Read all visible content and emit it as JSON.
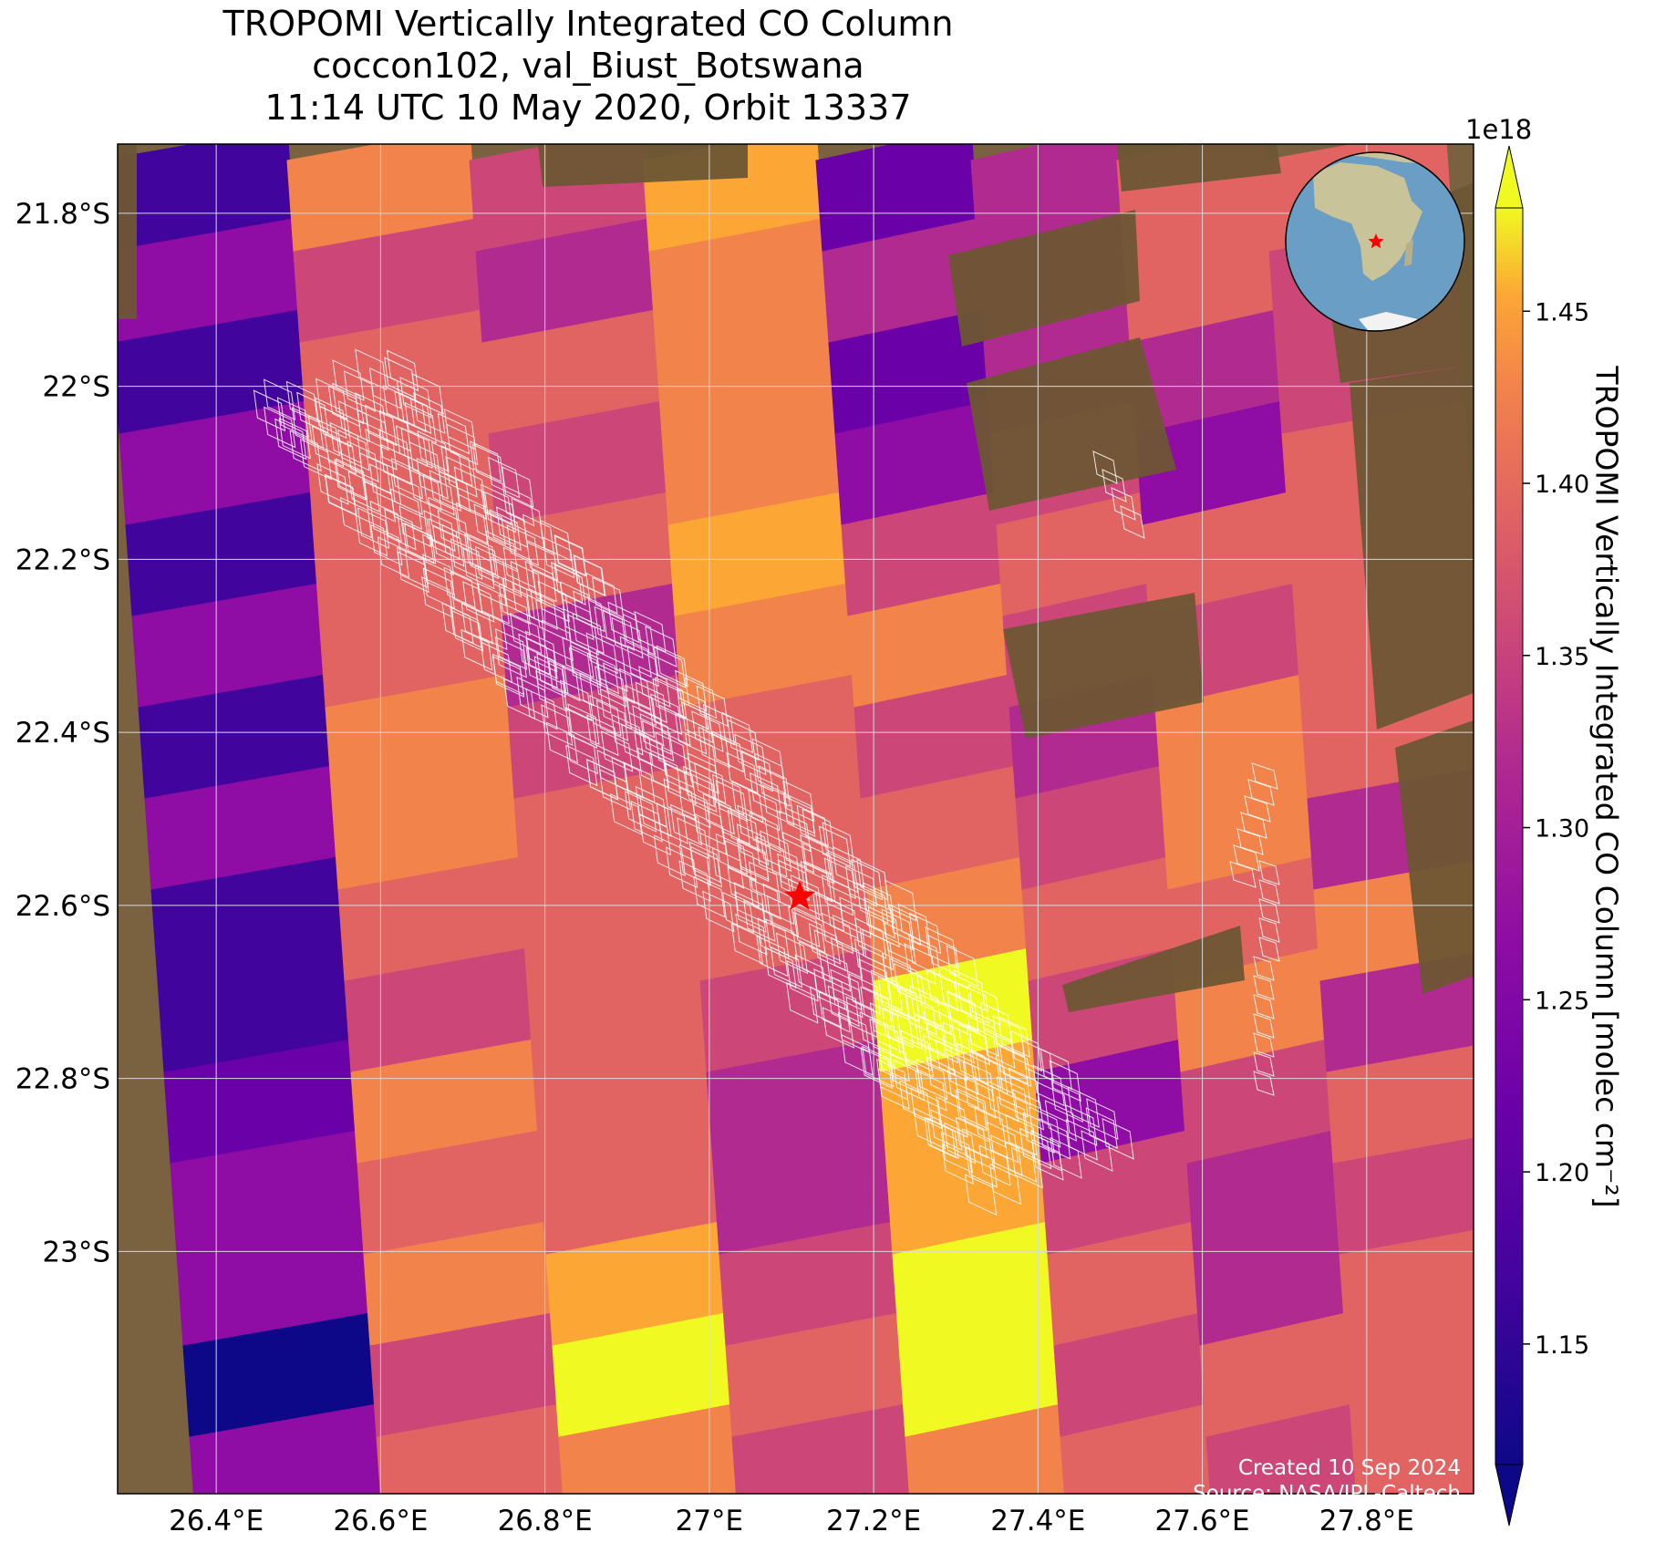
{
  "title": {
    "line1": "TROPOMI Vertically Integrated CO Column",
    "line2": "coccon102, val_Biust_Botswana",
    "line3": "11:14 UTC 10 May 2020, Orbit 13337"
  },
  "map": {
    "extent": {
      "lon": [
        26.28,
        27.93
      ],
      "lat": [
        -23.28,
        -21.72
      ]
    },
    "site": {
      "lon": 27.11,
      "lat": -22.59,
      "marker": "red-star"
    },
    "lon_ticks": [
      {
        "value": 26.4,
        "label": "26.4°E"
      },
      {
        "value": 26.6,
        "label": "26.6°E"
      },
      {
        "value": 26.8,
        "label": "26.8°E"
      },
      {
        "value": 27.0,
        "label": "27°E"
      },
      {
        "value": 27.2,
        "label": "27.2°E"
      },
      {
        "value": 27.4,
        "label": "27.4°E"
      },
      {
        "value": 27.6,
        "label": "27.6°E"
      },
      {
        "value": 27.8,
        "label": "27.8°E"
      }
    ],
    "lat_ticks": [
      {
        "value": -21.8,
        "label": "21.8°S"
      },
      {
        "value": -22.0,
        "label": "22°S"
      },
      {
        "value": -22.2,
        "label": "22.2°S"
      },
      {
        "value": -22.4,
        "label": "22.4°S"
      },
      {
        "value": -22.6,
        "label": "22.6°S"
      },
      {
        "value": -22.8,
        "label": "22.8°S"
      },
      {
        "value": -23.0,
        "label": "23°S"
      }
    ],
    "gridlines": true,
    "inset_globe": {
      "position": "top-right",
      "site_marker": "red-star"
    },
    "colormap": "plasma",
    "colors": {
      "land": "#7a6240",
      "grid": "#d9d9d9",
      "footprints": "#ffffff",
      "marker": "#ff0000"
    }
  },
  "colorbar": {
    "label": "TROPOMI Vertically Integrated CO Column [molec cm⁻²]",
    "exponent": "1e18",
    "min": 1.115,
    "max": 1.48,
    "extend": "both",
    "ticks": [
      {
        "value": 1.15,
        "label": "1.15"
      },
      {
        "value": 1.2,
        "label": "1.20"
      },
      {
        "value": 1.25,
        "label": "1.25"
      },
      {
        "value": 1.3,
        "label": "1.30"
      },
      {
        "value": 1.35,
        "label": "1.35"
      },
      {
        "value": 1.4,
        "label": "1.40"
      },
      {
        "value": 1.45,
        "label": "1.45"
      }
    ]
  },
  "credit": {
    "line1": "Created 10 Sep 2024",
    "line2": "Source: NASA/JPL-Caltech"
  }
}
